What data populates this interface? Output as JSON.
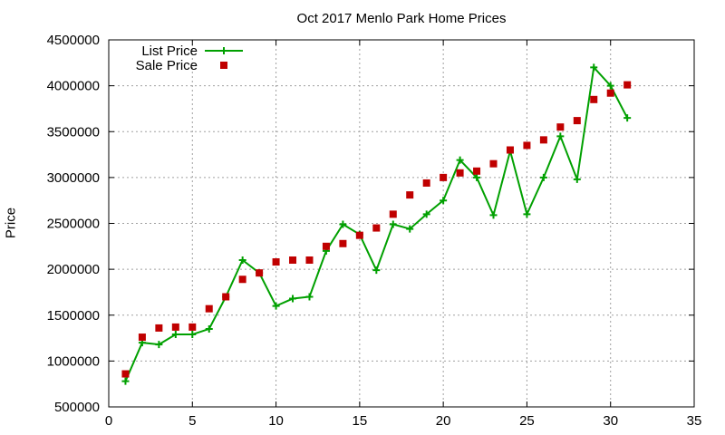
{
  "chart_data": {
    "type": "line",
    "title": "Oct 2017 Menlo Park Home Prices",
    "xlabel": "",
    "ylabel": "Price",
    "xlim": [
      0,
      35
    ],
    "ylim": [
      500000,
      4500000
    ],
    "xticks": [
      0,
      5,
      10,
      15,
      20,
      25,
      30,
      35
    ],
    "yticks": [
      500000,
      1000000,
      1500000,
      2000000,
      2500000,
      3000000,
      3500000,
      4000000,
      4500000
    ],
    "grid": true,
    "legend_position": "top-left",
    "series": [
      {
        "name": "List Price",
        "style": "line-plus",
        "color": "#00a000",
        "x": [
          1,
          2,
          3,
          4,
          5,
          6,
          7,
          8,
          9,
          10,
          11,
          12,
          13,
          14,
          15,
          16,
          17,
          18,
          19,
          20,
          21,
          22,
          23,
          24,
          25,
          26,
          27,
          28,
          29,
          30,
          31
        ],
        "values": [
          780000,
          1200000,
          1180000,
          1290000,
          1290000,
          1350000,
          1700000,
          2100000,
          1960000,
          1600000,
          1680000,
          1700000,
          2200000,
          2490000,
          2380000,
          1990000,
          2490000,
          2440000,
          2600000,
          2750000,
          3190000,
          3000000,
          2590000,
          3290000,
          2600000,
          3000000,
          3450000,
          2980000,
          4200000,
          4000000,
          3650000
        ]
      },
      {
        "name": "Sale Price",
        "style": "square-points",
        "color": "#c00000",
        "x": [
          1,
          2,
          3,
          4,
          5,
          6,
          7,
          8,
          9,
          10,
          11,
          12,
          13,
          14,
          15,
          16,
          17,
          18,
          19,
          20,
          21,
          22,
          23,
          24,
          25,
          26,
          27,
          28,
          29,
          30,
          31
        ],
        "values": [
          860000,
          1260000,
          1360000,
          1370000,
          1370000,
          1570000,
          1700000,
          1890000,
          1960000,
          2080000,
          2100000,
          2100000,
          2250000,
          2280000,
          2370000,
          2450000,
          2600000,
          2810000,
          2940000,
          3000000,
          3050000,
          3070000,
          3150000,
          3300000,
          3350000,
          3410000,
          3550000,
          3620000,
          3850000,
          3920000,
          4010000
        ]
      }
    ]
  }
}
